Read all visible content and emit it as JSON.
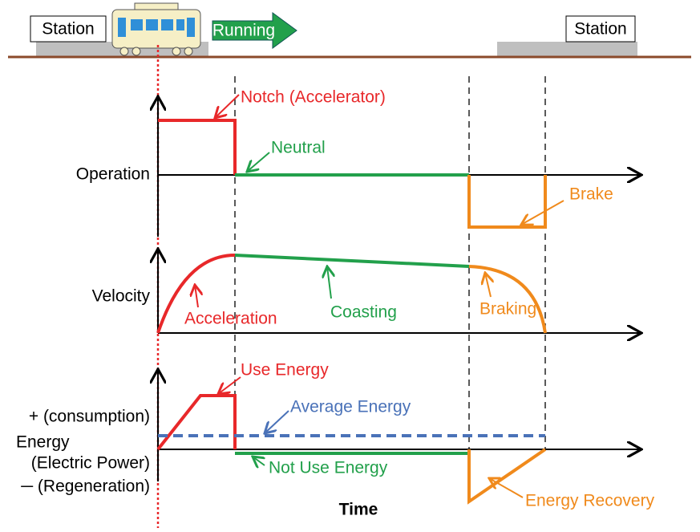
{
  "header": {
    "left_station": "Station",
    "running": "Running",
    "right_station": "Station"
  },
  "operation": {
    "label": "Operation",
    "notch": "Notch (Accelerator)",
    "neutral": "Neutral",
    "brake": "Brake"
  },
  "velocity": {
    "label": "Velocity",
    "acceleration": "Acceleration",
    "coasting": "Coasting",
    "braking": "Braking"
  },
  "energy": {
    "plus": "+ (consumption)",
    "label": "Energy",
    "sub": "(Electric Power)",
    "minus": "─ (Regeneration)",
    "use": "Use Energy",
    "average": "Average Energy",
    "not_use": "Not Use Energy",
    "recovery": "Energy Recovery"
  },
  "x_axis": "Time"
}
